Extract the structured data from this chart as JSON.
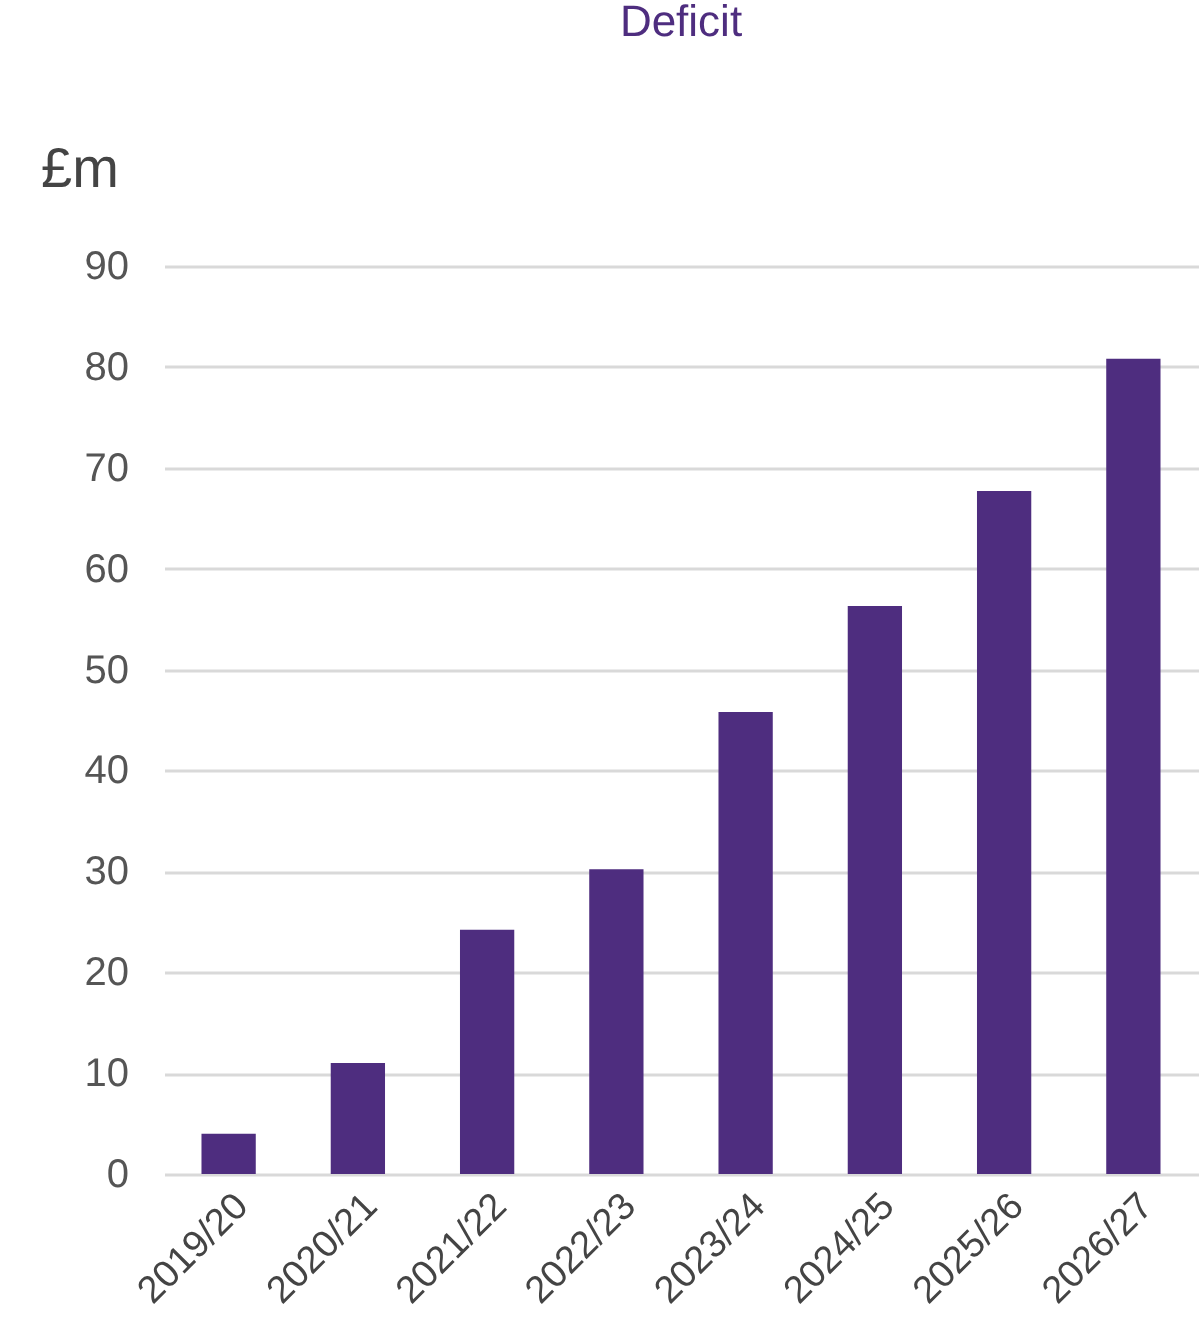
{
  "chart_data": {
    "type": "bar",
    "title": "Deficit",
    "ylabel": "£m",
    "categories": [
      "2019/20",
      "2020/21",
      "2021/22",
      "2022/23",
      "2023/24",
      "2024/25",
      "2025/26",
      "2026/27"
    ],
    "values": [
      4,
      11,
      24.2,
      30.2,
      45.8,
      56.3,
      67.7,
      80.8
    ],
    "color": "#4e2d7f",
    "ylim": [
      0,
      90
    ],
    "yticks": [
      0,
      10,
      20,
      30,
      40,
      50,
      60,
      70,
      80,
      90
    ],
    "grid": "y"
  }
}
